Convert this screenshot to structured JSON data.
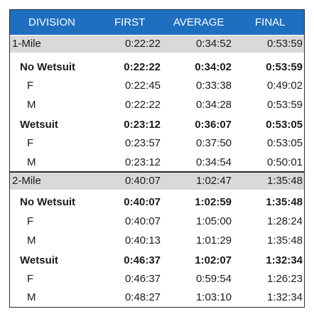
{
  "headers": [
    "DIVISION",
    "FIRST",
    "AVERAGE",
    "FINAL"
  ],
  "rows": [
    {
      "type": "section",
      "cells": [
        "1-Mile",
        "0:22:22",
        "0:34:52",
        "0:53:59"
      ]
    },
    {
      "type": "sub",
      "cells": [
        "No Wetsuit",
        "0:22:22",
        "0:34:02",
        "0:53:59"
      ]
    },
    {
      "type": "item",
      "cells": [
        "F",
        "0:22:45",
        "0:33:38",
        "0:49:02"
      ]
    },
    {
      "type": "item",
      "cells": [
        "M",
        "0:22:22",
        "0:34:28",
        "0:53:59"
      ]
    },
    {
      "type": "sub",
      "cells": [
        "Wetsuit",
        "0:23:12",
        "0:36:07",
        "0:53:05"
      ]
    },
    {
      "type": "item",
      "cells": [
        "F",
        "0:23:57",
        "0:37:50",
        "0:53:05"
      ]
    },
    {
      "type": "item",
      "cells": [
        "M",
        "0:23:12",
        "0:34:54",
        "0:50:01"
      ]
    },
    {
      "type": "section",
      "cells": [
        "2-Mile",
        "0:40:07",
        "1:02:47",
        "1:35:48"
      ]
    },
    {
      "type": "sub",
      "cells": [
        "No Wetsuit",
        "0:40:07",
        "1:02:59",
        "1:35:48"
      ]
    },
    {
      "type": "item",
      "cells": [
        "F",
        "0:40:07",
        "1:05:00",
        "1:28:24"
      ]
    },
    {
      "type": "item",
      "cells": [
        "M",
        "0:40:13",
        "1:01:29",
        "1:35:48"
      ]
    },
    {
      "type": "sub",
      "cells": [
        "Wetsuit",
        "0:46:37",
        "1:02:07",
        "1:32:34"
      ]
    },
    {
      "type": "item",
      "cells": [
        "F",
        "0:46:37",
        "0:59:54",
        "1:26:23"
      ]
    },
    {
      "type": "item",
      "cells": [
        "M",
        "0:48:27",
        "1:03:10",
        "1:32:34"
      ]
    }
  ]
}
